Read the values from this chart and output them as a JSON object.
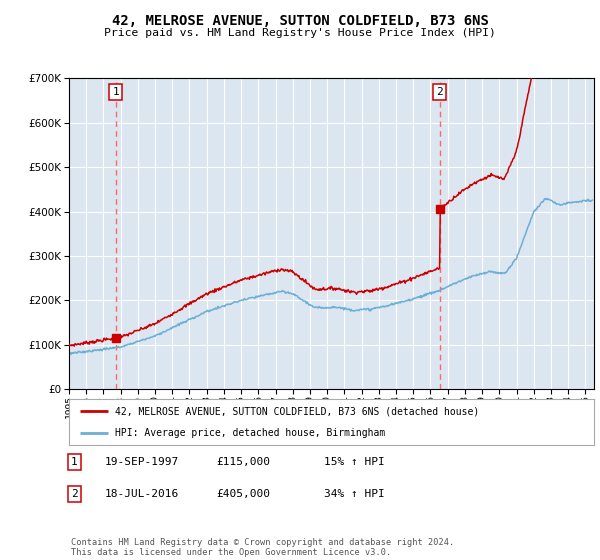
{
  "title": "42, MELROSE AVENUE, SUTTON COLDFIELD, B73 6NS",
  "subtitle": "Price paid vs. HM Land Registry's House Price Index (HPI)",
  "background_color": "#dce6f1",
  "plot_bg_color": "#dce6f1",
  "ylim": [
    0,
    700000
  ],
  "yticks": [
    0,
    100000,
    200000,
    300000,
    400000,
    500000,
    600000,
    700000
  ],
  "sale1_date": 1997.72,
  "sale1_price": 115000,
  "sale2_date": 2016.54,
  "sale2_price": 405000,
  "legend_line1": "42, MELROSE AVENUE, SUTTON COLDFIELD, B73 6NS (detached house)",
  "legend_line2": "HPI: Average price, detached house, Birmingham",
  "table_row1": [
    "1",
    "19-SEP-1997",
    "£115,000",
    "15% ↑ HPI"
  ],
  "table_row2": [
    "2",
    "18-JUL-2016",
    "£405,000",
    "34% ↑ HPI"
  ],
  "footer": "Contains HM Land Registry data © Crown copyright and database right 2024.\nThis data is licensed under the Open Government Licence v3.0.",
  "hpi_color": "#6baed6",
  "price_color": "#cc0000",
  "vline_color": "#ff6666",
  "marker_color": "#cc0000",
  "xlim": [
    1995,
    2025.5
  ],
  "xtick_years": [
    1995,
    1996,
    1997,
    1998,
    1999,
    2000,
    2001,
    2002,
    2003,
    2004,
    2005,
    2006,
    2007,
    2008,
    2009,
    2010,
    2011,
    2012,
    2013,
    2014,
    2015,
    2016,
    2017,
    2018,
    2019,
    2020,
    2021,
    2022,
    2023,
    2024,
    2025
  ]
}
